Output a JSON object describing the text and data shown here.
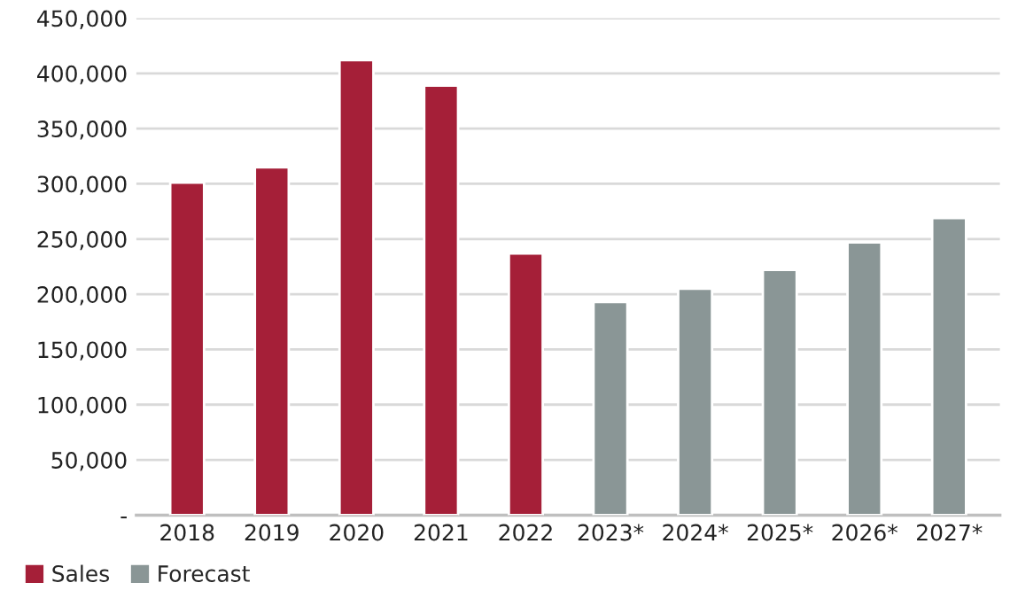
{
  "chart_data": {
    "type": "bar",
    "categories": [
      "2018",
      "2019",
      "2020",
      "2021",
      "2022",
      "2023*",
      "2024*",
      "2025*",
      "2026*",
      "2027*"
    ],
    "series": [
      {
        "name": "Sales",
        "color": "#a51f38",
        "values": [
          301000,
          315000,
          412000,
          389000,
          237000,
          null,
          null,
          null,
          null,
          null
        ]
      },
      {
        "name": "Forecast",
        "color": "#8a9696",
        "values": [
          null,
          null,
          null,
          null,
          null,
          193000,
          205000,
          222000,
          247000,
          269000
        ]
      }
    ],
    "ylim": [
      0,
      450000
    ],
    "yticks": [
      {
        "value": 0,
        "label": "-"
      },
      {
        "value": 50000,
        "label": "50,000"
      },
      {
        "value": 100000,
        "label": "100,000"
      },
      {
        "value": 150000,
        "label": "150,000"
      },
      {
        "value": 200000,
        "label": "200,000"
      },
      {
        "value": 250000,
        "label": "250,000"
      },
      {
        "value": 300000,
        "label": "300,000"
      },
      {
        "value": 350000,
        "label": "350,000"
      },
      {
        "value": 400000,
        "label": "400,000"
      },
      {
        "value": 450000,
        "label": "450,000"
      }
    ],
    "grid": "y",
    "legend": "bottom left"
  }
}
